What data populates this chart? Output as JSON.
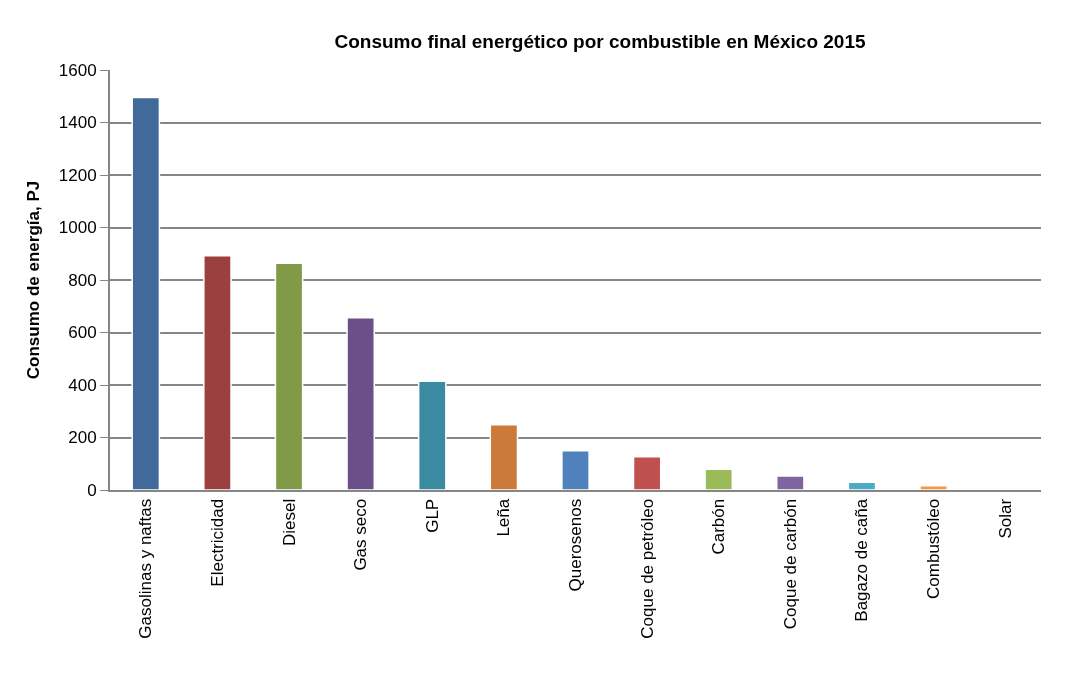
{
  "chart_data": {
    "type": "bar",
    "title": "Consumo final energético por combustible en México 2015",
    "ylabel": "Consumo de energía, PJ",
    "categories": [
      "Gasolinas y naftas",
      "Electricidad",
      "Diesel",
      "Gas seco",
      "GLP",
      "Leña",
      "Querosenos",
      "Coque de petróleo",
      "Carbón",
      "Coque de carbón",
      "Bagazo de caña",
      "Combustóleo",
      "Solar"
    ],
    "values": [
      1495,
      892,
      864,
      656,
      414,
      249,
      150,
      127,
      79,
      53,
      30,
      16,
      2
    ],
    "colors": [
      "#41699a",
      "#9c3f3f",
      "#809a48",
      "#6a4f88",
      "#3a8aa2",
      "#cc7a39",
      "#4f81bd",
      "#c0504d",
      "#9bbb59",
      "#8064a2",
      "#4bacc6",
      "#f79646",
      "#2c4d75"
    ],
    "ylim": [
      0,
      1600
    ],
    "yticks": [
      0,
      200,
      400,
      600,
      800,
      1000,
      1200,
      1400,
      1600
    ],
    "grid": "y"
  }
}
